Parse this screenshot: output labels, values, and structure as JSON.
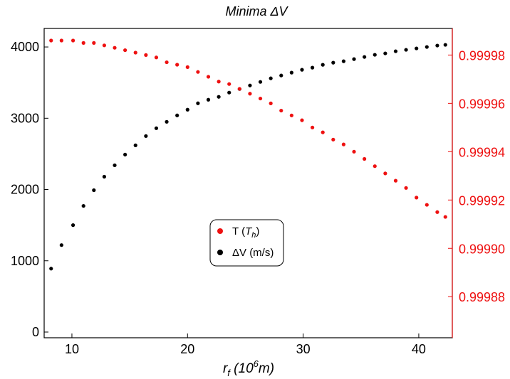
{
  "chart_data": {
    "type": "scatter",
    "title": "Minima ΔV",
    "xlabel": {
      "base": "r",
      "sub": "f",
      "paren_open": " (10",
      "sup": "6",
      "unit": "m)"
    },
    "ylabel": "",
    "y2label": "",
    "xlim": [
      7.6,
      42.9
    ],
    "ylim": [
      -80,
      4260
    ],
    "y2lim": [
      0.999863,
      0.999991
    ],
    "xticks": [
      "10",
      "20",
      "30",
      "40"
    ],
    "yticks": [
      "0",
      "1000",
      "2000",
      "3000",
      "4000"
    ],
    "y2ticks": [
      "0.99988",
      "0.99990",
      "0.99992",
      "0.99994",
      "0.99996",
      "0.99998"
    ],
    "colors": {
      "T": "#ee1111",
      "dV": "#000000",
      "right_axis": "#ee1111"
    },
    "legend": {
      "placement": "center",
      "entries": [
        {
          "name": "T",
          "paren_open": " (",
          "italic": "T",
          "sub": "h",
          "paren_close": ")"
        },
        {
          "name": "ΔV (m/s)"
        }
      ]
    },
    "series": [
      {
        "name": "ΔV (m/s)",
        "axis": "left",
        "x": [
          8.2,
          9.1,
          10.1,
          11.0,
          11.9,
          12.8,
          13.7,
          14.6,
          15.5,
          16.4,
          17.3,
          18.2,
          19.1,
          20.0,
          20.9,
          21.8,
          22.7,
          23.6,
          24.5,
          25.4,
          26.3,
          27.2,
          28.1,
          29.0,
          29.9,
          30.8,
          31.7,
          32.6,
          33.5,
          34.4,
          35.3,
          36.2,
          37.1,
          38.0,
          38.9,
          39.8,
          40.7,
          41.6,
          42.3
        ],
        "y": [
          890,
          1220,
          1500,
          1770,
          1990,
          2180,
          2340,
          2490,
          2620,
          2750,
          2860,
          2950,
          3040,
          3120,
          3210,
          3260,
          3300,
          3360,
          3410,
          3460,
          3510,
          3560,
          3600,
          3640,
          3680,
          3710,
          3750,
          3780,
          3800,
          3830,
          3860,
          3890,
          3910,
          3940,
          3960,
          3980,
          4000,
          4020,
          4030
        ]
      },
      {
        "name": "T",
        "axis": "right",
        "x": [
          8.2,
          9.1,
          10.1,
          11.0,
          11.9,
          12.8,
          13.7,
          14.6,
          15.5,
          16.4,
          17.3,
          18.2,
          19.1,
          20.0,
          20.9,
          21.8,
          22.7,
          23.6,
          24.5,
          25.4,
          26.3,
          27.2,
          28.1,
          29.0,
          29.9,
          30.8,
          31.7,
          32.6,
          33.5,
          34.4,
          35.3,
          36.2,
          37.1,
          38.0,
          38.9,
          39.8,
          40.7,
          41.6,
          42.3
        ],
        "y": [
          0.999986,
          0.999986,
          0.999986,
          0.999985,
          0.999985,
          0.999984,
          0.999983,
          0.999982,
          0.999981,
          0.99998,
          0.999979,
          0.999977,
          0.999976,
          0.999975,
          0.999973,
          0.999971,
          0.999969,
          0.999968,
          0.999966,
          0.999964,
          0.999962,
          0.99996,
          0.999957,
          0.999955,
          0.999953,
          0.99995,
          0.999948,
          0.999945,
          0.999943,
          0.99994,
          0.999937,
          0.999934,
          0.999931,
          0.999928,
          0.999925,
          0.999921,
          0.999918,
          0.999915,
          0.999913
        ]
      }
    ]
  }
}
